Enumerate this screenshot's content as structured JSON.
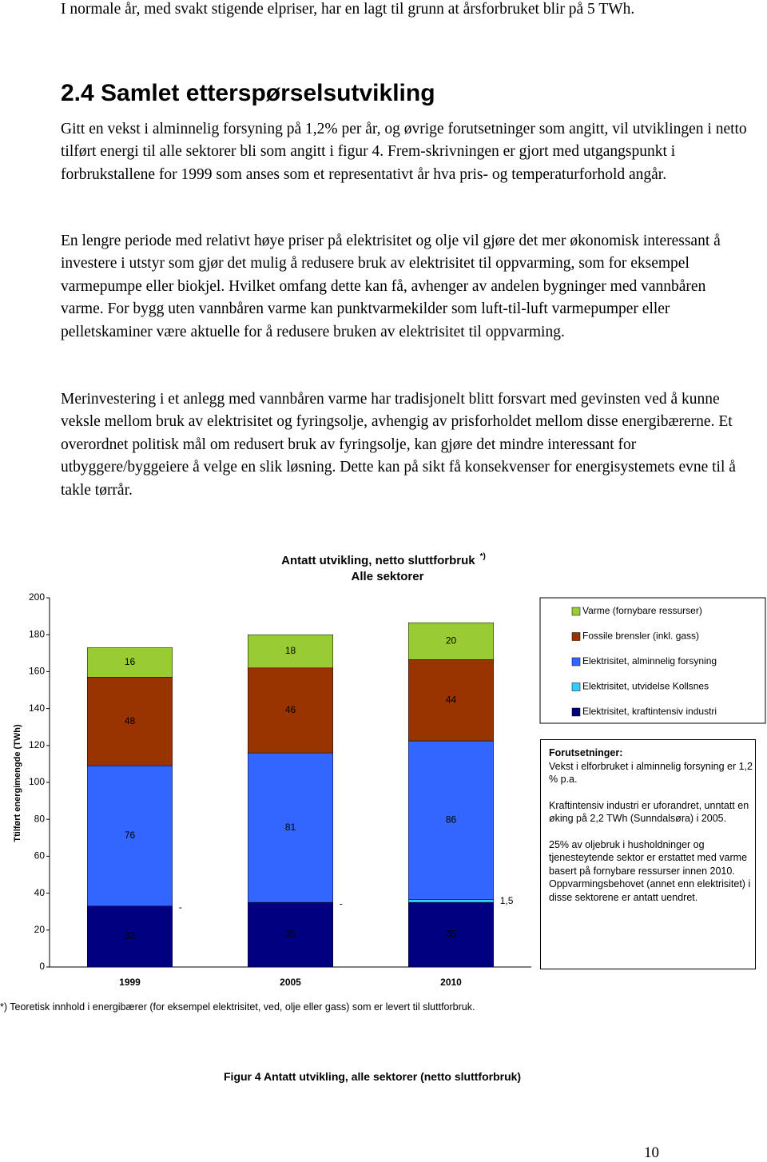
{
  "document": {
    "paragraphs": [
      "I normale år, med svakt stigende elpriser, har en lagt til grunn at årsforbruket blir på 5 TWh.",
      "Gitt en vekst i alminnelig forsyning på 1,2% per år, og øvrige forutsetninger som angitt, vil utviklingen i netto tilført energi til alle sektorer bli som angitt i figur 4. Frem-skrivningen er gjort med utgangspunkt i forbrukstallene for 1999 som anses som et representativt år hva pris- og temperaturforhold angår.",
      "En lengre periode med relativt høye priser på elektrisitet og olje vil gjøre det mer økonomisk interessant å investere i utstyr som gjør det mulig å redusere bruk av elektrisitet til oppvarming, som for eksempel varmepumpe eller biokjel. Hvilket omfang dette kan få, avhenger av andelen bygninger med vannbåren varme. For bygg uten vannbåren varme kan punktvarmekilder som luft-til-luft varmepumper eller pelletskaminer være aktuelle for å redusere bruken av elektrisitet til oppvarming.",
      "Merinvestering i et anlegg med vannbåren varme har tradisjonelt blitt forsvart med gevinsten ved å kunne veksle mellom bruk av elektrisitet og fyringsolje, avhengig av prisforholdet mellom disse energibærerne. Et overordnet politisk mål om redusert bruk av fyringsolje, kan gjøre det mindre interessant for utbyggere/byggeiere å velge en slik løsning. Dette kan på sikt få konsekvenser for energisystemets evne til å takle tørrår."
    ],
    "heading": "2.4 Samlet etterspørselsutvikling",
    "footnote": "*) Teoretisk innhold i energibærer (for eksempel elektrisitet, ved, olje eller gass) som er levert til sluttforbruk.",
    "caption": "Figur 4 Antatt utvikling, alle sektorer (netto sluttforbruk)",
    "page_number": "10"
  },
  "chart_data": {
    "type": "stacked_bar",
    "title": "Antatt utvikling, netto sluttforbruk",
    "title_note": "*)",
    "subtitle": "Alle sektorer",
    "y_label": "Ttilført energimengde (TWh)",
    "categories": [
      "1999",
      "2005",
      "2010"
    ],
    "series": [
      {
        "name": "Elektrisitet, kraftintensiv industri",
        "color": "#000080",
        "values": [
          33,
          35,
          35
        ]
      },
      {
        "name": "Elektrisitet, utvidelse Kollsnes",
        "color": "#33ccff",
        "values": [
          0,
          0,
          1.5
        ],
        "value_labels": [
          "-",
          "-",
          "1,5"
        ]
      },
      {
        "name": "Elektrisitet, alminnelig forsyning",
        "color": "#3366ff",
        "values": [
          76,
          81,
          86
        ]
      },
      {
        "name": "Fossile brensler (inkl. gass)",
        "color": "#993300",
        "values": [
          48,
          46,
          44
        ]
      },
      {
        "name": "Varme (fornybare ressurser)",
        "color": "#99cc33",
        "values": [
          16,
          18,
          20
        ]
      }
    ],
    "ylim": [
      0,
      200
    ],
    "yticks": [
      0,
      20,
      40,
      60,
      80,
      100,
      120,
      140,
      160,
      180,
      200
    ],
    "annotations": [
      "Forutsetninger:",
      "Vekst i elforbruket i alminnelig forsyning er 1,2 % p.a.",
      "Kraftintensiv industri er uforandret, unntatt en øking på 2,2 TWh (Sunndalsøra) i 2005.",
      "25% av oljebruk i husholdninger og tjenesteytende sektor er erstattet med varme basert på fornybare ressurser innen 2010. Oppvarmingsbehovet (annet enn elektrisitet) i disse sektorene er antatt uendret."
    ]
  }
}
